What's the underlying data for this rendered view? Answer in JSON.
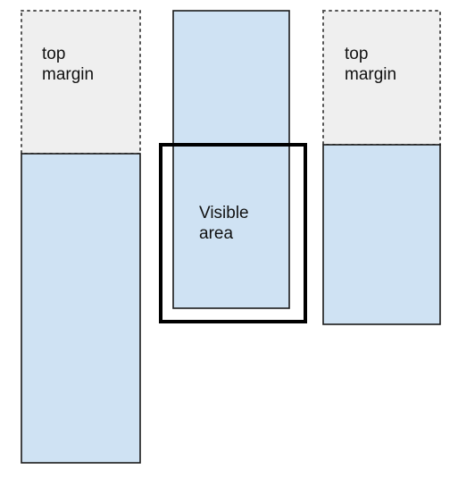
{
  "colors": {
    "margin_fill": "#efefef",
    "content_fill": "#cfe2f3",
    "outline": "#1a1a1a",
    "viewport_outline": "#000000"
  },
  "left_column": {
    "margin_label": "top\nmargin"
  },
  "middle_column": {
    "viewport_label": "Visible\narea"
  },
  "right_column": {
    "margin_label": "top\nmargin"
  }
}
